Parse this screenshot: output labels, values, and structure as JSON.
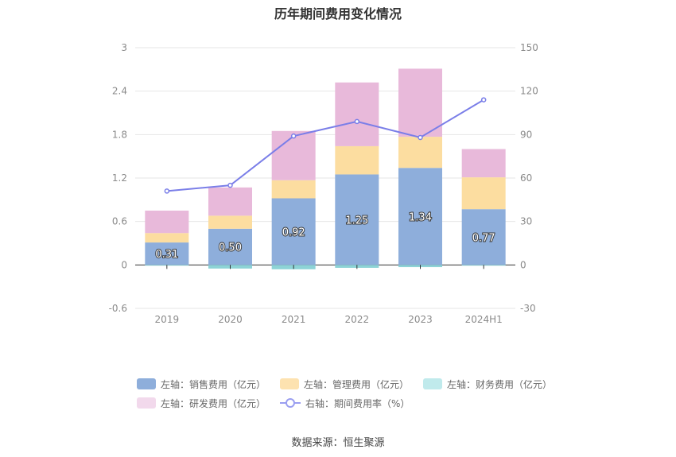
{
  "chart_data": {
    "type": "bar",
    "title": "历年期间费用变化情况",
    "categories": [
      "2019",
      "2020",
      "2021",
      "2022",
      "2023",
      "2024H1"
    ],
    "left_axis": {
      "ylim": [
        -0.6,
        3
      ],
      "ticks": [
        "3",
        "2.4",
        "1.8",
        "1.2",
        "0.6",
        "0",
        "-0.6"
      ],
      "tick_values": [
        3,
        2.4,
        1.8,
        1.2,
        0.6,
        0,
        -0.6
      ]
    },
    "right_axis": {
      "ylim": [
        -30,
        150
      ],
      "ticks": [
        "150",
        "120",
        "90",
        "60",
        "30",
        "0",
        "-30"
      ],
      "tick_values": [
        150,
        120,
        90,
        60,
        30,
        0,
        -30
      ]
    },
    "series": [
      {
        "name": "左轴：销售费用（亿元）",
        "axis": "left",
        "kind": "bar",
        "color": "#8eaedb",
        "values": [
          0.31,
          0.5,
          0.92,
          1.25,
          1.34,
          0.77
        ],
        "data_labels": [
          "0.31",
          "0.50",
          "0.92",
          "1.25",
          "1.34",
          "0.77"
        ]
      },
      {
        "name": "左轴：管理费用（亿元）",
        "axis": "left",
        "kind": "bar",
        "color": "#fcdda0",
        "values": [
          0.13,
          0.18,
          0.25,
          0.39,
          0.43,
          0.44
        ]
      },
      {
        "name": "左轴：财务费用（亿元）",
        "axis": "left",
        "kind": "bar",
        "color": "#8dd3d6",
        "values": [
          -0.01,
          -0.05,
          -0.06,
          -0.04,
          -0.03,
          -0.01
        ]
      },
      {
        "name": "左轴：研发费用（亿元）",
        "axis": "left",
        "kind": "bar",
        "color": "#e8b9da",
        "values": [
          0.31,
          0.39,
          0.68,
          0.88,
          0.94,
          0.39
        ]
      },
      {
        "name": "右轴：期间费用率（%）",
        "axis": "right",
        "kind": "line",
        "color": "#7a7ee8",
        "values": [
          51,
          55,
          89,
          99,
          88,
          114
        ]
      }
    ],
    "legend_position": "bottom",
    "grid": true
  },
  "footer": {
    "source": "数据来源：恒生聚源"
  },
  "legend_swatch_colors": [
    "#8eaedb",
    "#fde2b0",
    "#c0eaec",
    "#f2d9ec"
  ]
}
